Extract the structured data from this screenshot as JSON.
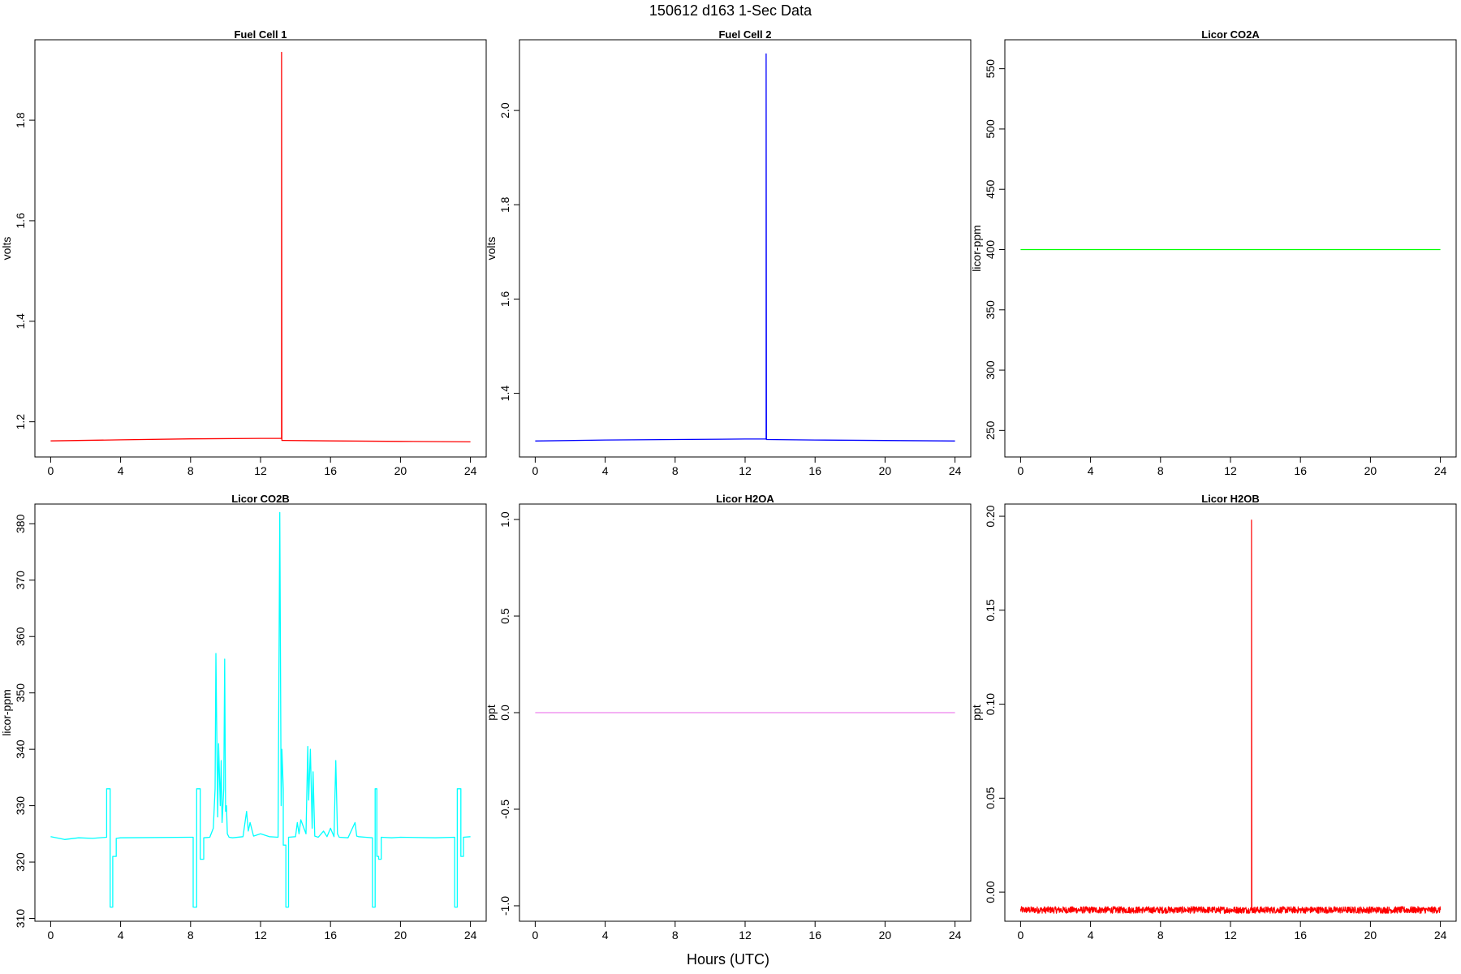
{
  "figure": {
    "title": "150612   d163   1-Sec Data",
    "xlabel": "Hours (UTC)"
  },
  "chart_data": [
    {
      "type": "line",
      "title": "Fuel Cell 1",
      "xlabel": "",
      "ylabel": "volts",
      "color": "#ff0000",
      "xlim": [
        -0.9,
        24.9
      ],
      "ylim": [
        1.13,
        1.96
      ],
      "xticks": [
        0,
        4,
        8,
        12,
        16,
        20,
        24
      ],
      "yticks": [
        1.2,
        1.4,
        1.6,
        1.8
      ],
      "ytick_labels": [
        "1.2",
        "1.4",
        "1.6",
        "1.8"
      ],
      "grid": false,
      "series": [
        {
          "x": [
            0,
            4,
            8,
            12,
            13.2,
            13.2,
            13.22,
            13.3,
            16,
            20,
            24
          ],
          "values": [
            1.162,
            1.164,
            1.166,
            1.167,
            1.167,
            1.935,
            1.163,
            1.163,
            1.162,
            1.161,
            1.16
          ]
        }
      ]
    },
    {
      "type": "line",
      "title": "Fuel Cell 2",
      "xlabel": "",
      "ylabel": "volts",
      "color": "#0000ff",
      "xlim": [
        -0.9,
        24.9
      ],
      "ylim": [
        1.265,
        2.15
      ],
      "xticks": [
        0,
        4,
        8,
        12,
        16,
        20,
        24
      ],
      "yticks": [
        1.4,
        1.6,
        1.8,
        2.0
      ],
      "ytick_labels": [
        "1.4",
        "1.6",
        "1.8",
        "2.0"
      ],
      "grid": false,
      "series": [
        {
          "x": [
            0,
            4,
            8,
            12,
            13.2,
            13.2,
            13.22,
            16,
            20,
            24
          ],
          "values": [
            1.299,
            1.301,
            1.302,
            1.303,
            1.303,
            2.12,
            1.302,
            1.301,
            1.3,
            1.299
          ]
        }
      ]
    },
    {
      "type": "line",
      "title": "Licor CO2A",
      "xlabel": "",
      "ylabel": "licor-ppm",
      "color": "#00ff00",
      "xlim": [
        -0.9,
        24.9
      ],
      "ylim": [
        228,
        574
      ],
      "xticks": [
        0,
        4,
        8,
        12,
        16,
        20,
        24
      ],
      "yticks": [
        250,
        300,
        350,
        400,
        450,
        500,
        550
      ],
      "ytick_labels": [
        "250",
        "300",
        "350",
        "400",
        "450",
        "500",
        "550"
      ],
      "grid": false,
      "series": [
        {
          "x": [
            0,
            24
          ],
          "values": [
            400,
            400
          ]
        }
      ]
    },
    {
      "type": "line",
      "title": "Licor CO2B",
      "xlabel": "",
      "ylabel": "licor-ppm",
      "color": "#00ffff",
      "xlim": [
        -0.9,
        24.9
      ],
      "ylim": [
        309.5,
        383.5
      ],
      "xticks": [
        0,
        4,
        8,
        12,
        16,
        20,
        24
      ],
      "yticks": [
        310,
        320,
        330,
        340,
        350,
        360,
        370,
        380
      ],
      "ytick_labels": [
        "310",
        "320",
        "330",
        "340",
        "350",
        "360",
        "370",
        "380"
      ],
      "grid": false,
      "series": [
        {
          "x": [
            0,
            0.8,
            1.6,
            2.4,
            3.2,
            3.2,
            3.4,
            3.4,
            3.55,
            3.55,
            3.75,
            3.75,
            4,
            8,
            8.15,
            8.15,
            8.35,
            8.35,
            8.55,
            8.55,
            8.75,
            8.75,
            9.1,
            9.3,
            9.4,
            9.45,
            9.55,
            9.6,
            9.7,
            9.75,
            9.8,
            9.9,
            9.95,
            10.0,
            10.05,
            10.1,
            10.2,
            10.4,
            11.0,
            11.2,
            11.3,
            11.4,
            11.6,
            12.0,
            12.5,
            13.0,
            13.1,
            13.18,
            13.22,
            13.3,
            13.3,
            13.45,
            13.45,
            13.6,
            13.6,
            14.0,
            14.1,
            14.2,
            14.3,
            14.6,
            14.7,
            14.75,
            14.85,
            14.95,
            15.0,
            15.1,
            15.3,
            15.6,
            15.8,
            16.0,
            16.2,
            16.3,
            16.4,
            16.5,
            17.0,
            17.4,
            17.5,
            17.6,
            18.0,
            18.4,
            18.4,
            18.55,
            18.55,
            18.65,
            18.65,
            18.75,
            18.75,
            18.9,
            18.9,
            19.5,
            20,
            22,
            23.1,
            23.1,
            23.25,
            23.25,
            23.45,
            23.45,
            23.6,
            23.6,
            24
          ],
          "values": [
            324.5,
            324.0,
            324.3,
            324.2,
            324.4,
            333.0,
            333.0,
            312.0,
            312.0,
            321.0,
            321.0,
            324.2,
            324.3,
            324.4,
            324.4,
            312.0,
            312.0,
            333.0,
            333.0,
            320.5,
            320.5,
            324.3,
            324.4,
            326.0,
            333.0,
            357.0,
            328.0,
            341.0,
            330.0,
            338.0,
            327.0,
            333.0,
            356.0,
            329.0,
            330.0,
            325.0,
            324.4,
            324.3,
            324.5,
            329.0,
            325.5,
            327.0,
            324.6,
            325.0,
            324.5,
            324.4,
            382.0,
            330.0,
            340.0,
            333.0,
            323.0,
            323.0,
            312.0,
            312.0,
            324.4,
            324.5,
            327.0,
            325.0,
            327.5,
            325.0,
            340.5,
            331.0,
            340.0,
            326.0,
            336.0,
            324.6,
            324.4,
            325.5,
            324.5,
            326.0,
            324.5,
            338.0,
            325.0,
            324.4,
            324.3,
            327.0,
            324.6,
            324.5,
            324.4,
            324.3,
            312.0,
            312.0,
            333.0,
            333.0,
            321.0,
            321.0,
            320.5,
            320.5,
            324.4,
            324.3,
            324.4,
            324.3,
            324.4,
            312.0,
            312.0,
            333.0,
            333.0,
            321.0,
            321.0,
            324.4,
            324.5
          ]
        }
      ]
    },
    {
      "type": "line",
      "title": "Licor H2OA",
      "xlabel": "",
      "ylabel": "ppt",
      "color": "#ee82ee",
      "xlim": [
        -0.9,
        24.9
      ],
      "ylim": [
        -1.08,
        1.08
      ],
      "xticks": [
        0,
        4,
        8,
        12,
        16,
        20,
        24
      ],
      "yticks": [
        -1.0,
        -0.5,
        0.0,
        0.5,
        1.0
      ],
      "ytick_labels": [
        "-1.0",
        "-0.5",
        "0.0",
        "0.5",
        "1.0"
      ],
      "grid": false,
      "series": [
        {
          "x": [
            0,
            24
          ],
          "values": [
            0,
            0
          ]
        }
      ]
    },
    {
      "type": "line",
      "title": "Licor H2OB",
      "xlabel": "",
      "ylabel": "ppt",
      "color": "#ff0000",
      "xlim": [
        -0.9,
        24.9
      ],
      "ylim": [
        -0.0155,
        0.2065
      ],
      "xticks": [
        0,
        4,
        8,
        12,
        16,
        20,
        24
      ],
      "yticks": [
        0.0,
        0.05,
        0.1,
        0.15,
        0.2
      ],
      "ytick_labels": [
        "0.00",
        "0.05",
        "0.10",
        "0.15",
        "0.20"
      ],
      "grid": false,
      "noise_amplitude": 0.0018,
      "series": [
        {
          "x": [
            0,
            13.2,
            13.2,
            13.22,
            24
          ],
          "values": [
            -0.0095,
            -0.0095,
            0.198,
            -0.0095,
            -0.0095
          ]
        }
      ]
    }
  ]
}
